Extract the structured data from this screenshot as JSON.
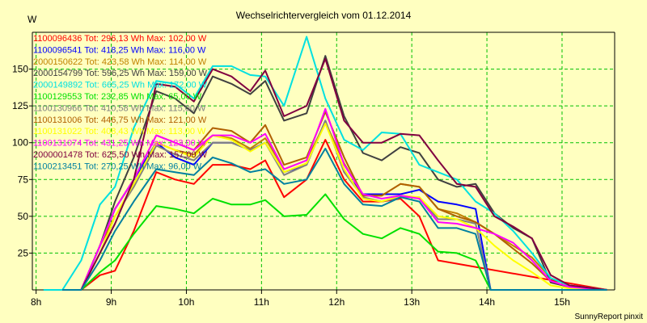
{
  "chart_data": {
    "type": "line",
    "title": "Wechselrichtervergleich vom 01.12.2014",
    "ylabel": "W",
    "xlabel": "",
    "footer": "SunnyReport pinxit",
    "ylim": [
      0,
      175
    ],
    "xlim": [
      7.95,
      15.7
    ],
    "y_ticks": [
      25,
      50,
      75,
      100,
      125,
      150
    ],
    "x_ticks": [
      {
        "value": 8,
        "label": "8h"
      },
      {
        "value": 9,
        "label": "9h"
      },
      {
        "value": 10,
        "label": "10h"
      },
      {
        "value": 11,
        "label": "11h"
      },
      {
        "value": 12,
        "label": "12h"
      },
      {
        "value": 13,
        "label": "13h"
      },
      {
        "value": 14,
        "label": "14h"
      },
      {
        "value": 15,
        "label": "15h"
      }
    ],
    "grid": true,
    "legend_position": "top-left",
    "colors": {
      "background": "#ffffc0",
      "grid": "#00c000"
    },
    "series": [
      {
        "name": "1100096436 Tot: 296,13 Wh Max: 102,00 W",
        "color": "#ff0000",
        "x": [
          8.35,
          8.6,
          8.85,
          9.05,
          9.3,
          9.6,
          9.85,
          10.1,
          10.35,
          10.6,
          10.85,
          11.05,
          11.3,
          11.6,
          11.85,
          12.1,
          12.35,
          12.6,
          12.85,
          13.1,
          13.35,
          15.6
        ],
        "y": [
          0,
          0,
          10,
          13,
          40,
          80,
          75,
          72,
          85,
          85,
          82,
          88,
          63,
          75,
          102,
          75,
          60,
          60,
          62,
          50,
          20,
          0
        ]
      },
      {
        "name": "1100096541 Tot: 418,25 Wh Max: 116,00 W",
        "color": "#0000ff",
        "x": [
          8.35,
          8.6,
          8.85,
          9.05,
          9.3,
          9.6,
          9.85,
          10.1,
          10.35,
          10.6,
          10.85,
          11.05,
          11.3,
          11.6,
          11.85,
          12.1,
          12.35,
          12.6,
          12.85,
          13.1,
          13.35,
          13.6,
          13.85,
          14.05,
          15.6
        ],
        "y": [
          0,
          0,
          30,
          55,
          75,
          100,
          90,
          85,
          100,
          100,
          95,
          100,
          80,
          85,
          115,
          80,
          65,
          65,
          65,
          68,
          60,
          58,
          55,
          0,
          0
        ]
      },
      {
        "name": "2000150622 Tot: 423,58 Wh Max: 114,00 W",
        "color": "#c08000",
        "x": [
          8.35,
          8.6,
          8.85,
          9.05,
          9.3,
          9.6,
          9.85,
          10.1,
          10.35,
          10.6,
          10.85,
          11.05,
          11.3,
          11.6,
          11.85,
          12.1,
          12.35,
          12.6,
          12.85,
          13.1,
          13.35,
          13.6,
          13.85,
          14.1,
          14.35,
          14.6,
          14.85,
          15.1,
          15.6
        ],
        "y": [
          0,
          0,
          30,
          50,
          70,
          100,
          95,
          92,
          105,
          103,
          96,
          103,
          82,
          88,
          114,
          86,
          64,
          64,
          72,
          70,
          55,
          52,
          46,
          38,
          30,
          22,
          8,
          3,
          0
        ]
      },
      {
        "name": "2000154799 Tot: 596,25 Wh Max: 159,00 W",
        "color": "#404040",
        "x": [
          8.35,
          8.6,
          8.85,
          9.05,
          9.3,
          9.6,
          9.85,
          10.1,
          10.35,
          10.6,
          10.85,
          11.05,
          11.3,
          11.6,
          11.85,
          12.1,
          12.35,
          12.6,
          12.85,
          13.1,
          13.35,
          13.6,
          13.85,
          14.1,
          14.35,
          14.6,
          14.85,
          15.1,
          15.6
        ],
        "y": [
          0,
          0,
          30,
          60,
          90,
          135,
          130,
          120,
          145,
          140,
          133,
          142,
          115,
          120,
          159,
          118,
          93,
          88,
          97,
          93,
          75,
          70,
          72,
          52,
          42,
          35,
          5,
          2,
          0
        ]
      },
      {
        "name": "2000149892 Tot: 665,25 Wh Max: 172,00 W",
        "color": "#00e0e0",
        "x": [
          8.1,
          8.35,
          8.6,
          8.85,
          9.05,
          9.3,
          9.6,
          9.85,
          10.1,
          10.35,
          10.6,
          10.85,
          11.05,
          11.3,
          11.6,
          11.85,
          12.1,
          12.35,
          12.6,
          12.85,
          13.1,
          13.35,
          13.6,
          13.85,
          14.1,
          14.35,
          14.6,
          14.85,
          15.1,
          15.6
        ],
        "y": [
          0,
          0,
          20,
          58,
          70,
          110,
          142,
          140,
          130,
          152,
          152,
          146,
          145,
          125,
          172,
          130,
          102,
          95,
          107,
          106,
          85,
          80,
          75,
          60,
          52,
          40,
          25,
          8,
          3,
          0
        ]
      },
      {
        "name": "1100129553 Tot: 232,85 Wh Max: 65,00 W",
        "color": "#00e000",
        "x": [
          8.35,
          8.6,
          8.85,
          9.05,
          9.3,
          9.6,
          9.85,
          10.1,
          10.35,
          10.6,
          10.85,
          11.05,
          11.3,
          11.6,
          11.85,
          12.1,
          12.35,
          12.6,
          12.85,
          13.1,
          13.35,
          13.6,
          13.85,
          14.05,
          15.6
        ],
        "y": [
          0,
          0,
          12,
          20,
          38,
          57,
          55,
          52,
          62,
          58,
          58,
          61,
          50,
          51,
          65,
          48,
          38,
          35,
          42,
          38,
          26,
          25,
          20,
          0,
          0
        ]
      },
      {
        "name": "1100130966 Tot: 410,58 Wh Max: 115,00 W",
        "color": "#808080",
        "x": [
          8.35,
          8.6,
          8.85,
          9.05,
          9.3,
          9.6,
          9.85,
          10.1,
          10.35,
          10.6,
          10.85,
          11.05,
          11.3,
          11.6,
          11.85,
          12.1,
          12.35,
          12.6,
          12.85,
          13.1,
          13.35,
          13.6,
          13.85,
          14.05,
          15.6
        ],
        "y": [
          0,
          0,
          25,
          50,
          70,
          98,
          92,
          88,
          100,
          100,
          95,
          100,
          78,
          85,
          115,
          80,
          63,
          60,
          63,
          63,
          48,
          48,
          45,
          0,
          0
        ]
      },
      {
        "name": "1100131006 Tot: 446,75 Wh Max: 121,00 W",
        "color": "#b06000",
        "x": [
          8.35,
          8.6,
          8.85,
          9.05,
          9.3,
          9.6,
          9.85,
          10.1,
          10.35,
          10.6,
          10.85,
          11.05,
          11.3,
          11.6,
          11.85,
          12.1,
          12.35,
          12.6,
          12.85,
          13.1,
          13.35,
          13.6,
          13.85,
          14.1,
          14.35,
          14.6,
          14.85,
          15.1,
          15.6
        ],
        "y": [
          0,
          0,
          30,
          55,
          75,
          105,
          100,
          95,
          110,
          108,
          100,
          112,
          85,
          90,
          121,
          90,
          64,
          64,
          72,
          70,
          55,
          50,
          46,
          38,
          28,
          18,
          6,
          2,
          0
        ]
      },
      {
        "name": "1100131022 Tot: 408,43 Wh Max: 113,00 W",
        "color": "#ffff00",
        "x": [
          8.35,
          8.6,
          8.85,
          9.05,
          9.3,
          9.6,
          9.85,
          10.1,
          10.35,
          10.6,
          10.85,
          11.05,
          11.3,
          11.6,
          11.85,
          12.1,
          12.35,
          12.6,
          12.85,
          13.1,
          13.35,
          13.6,
          13.85,
          14.1,
          14.35,
          14.6,
          14.85,
          15.1,
          15.6
        ],
        "y": [
          0,
          0,
          25,
          50,
          72,
          100,
          95,
          90,
          105,
          102,
          94,
          100,
          80,
          86,
          113,
          82,
          62,
          60,
          64,
          63,
          50,
          48,
          42,
          30,
          20,
          12,
          3,
          1,
          0
        ]
      },
      {
        "name": "1100131074 Tot: 431,25 Wh Max: 123,00 W",
        "color": "#ff00ff",
        "x": [
          8.35,
          8.6,
          8.85,
          9.05,
          9.3,
          9.6,
          9.85,
          10.1,
          10.35,
          10.6,
          10.85,
          11.05,
          11.3,
          11.6,
          11.85,
          12.1,
          12.35,
          12.6,
          12.85,
          13.1,
          13.35,
          13.6,
          13.85,
          14.1,
          14.35,
          14.6,
          14.85,
          15.1,
          15.6
        ],
        "y": [
          0,
          0,
          30,
          55,
          75,
          105,
          100,
          95,
          105,
          105,
          100,
          106,
          82,
          88,
          123,
          85,
          65,
          62,
          64,
          62,
          46,
          45,
          42,
          38,
          32,
          20,
          6,
          2,
          0
        ]
      },
      {
        "name": "2000001478 Tot: 625,50 Wh Max: 157,00 W",
        "color": "#800040",
        "x": [
          8.35,
          8.6,
          8.85,
          9.05,
          9.3,
          9.6,
          9.85,
          10.1,
          10.35,
          10.6,
          10.85,
          11.05,
          11.3,
          11.6,
          11.85,
          12.1,
          12.35,
          12.6,
          12.85,
          13.1,
          13.35,
          13.6,
          13.85,
          14.1,
          14.35,
          14.6,
          14.85,
          15.1,
          15.6
        ],
        "y": [
          0,
          0,
          25,
          45,
          75,
          140,
          138,
          128,
          150,
          145,
          135,
          149,
          118,
          125,
          157,
          115,
          100,
          100,
          106,
          105,
          88,
          72,
          70,
          50,
          43,
          35,
          10,
          3,
          0
        ]
      },
      {
        "name": "1100213451 Tot: 270,25 Wh Max: 96,00 W",
        "color": "#0080a0",
        "x": [
          8.35,
          8.6,
          8.85,
          9.05,
          9.3,
          9.6,
          9.85,
          10.1,
          10.35,
          10.6,
          10.85,
          11.05,
          11.3,
          11.6,
          11.85,
          12.1,
          12.35,
          12.6,
          12.85,
          13.1,
          13.35,
          13.6,
          13.85,
          14.05,
          15.6
        ],
        "y": [
          0,
          0,
          20,
          40,
          60,
          82,
          80,
          78,
          90,
          86,
          80,
          82,
          72,
          75,
          96,
          72,
          58,
          57,
          63,
          60,
          42,
          42,
          38,
          0,
          0
        ]
      }
    ]
  }
}
